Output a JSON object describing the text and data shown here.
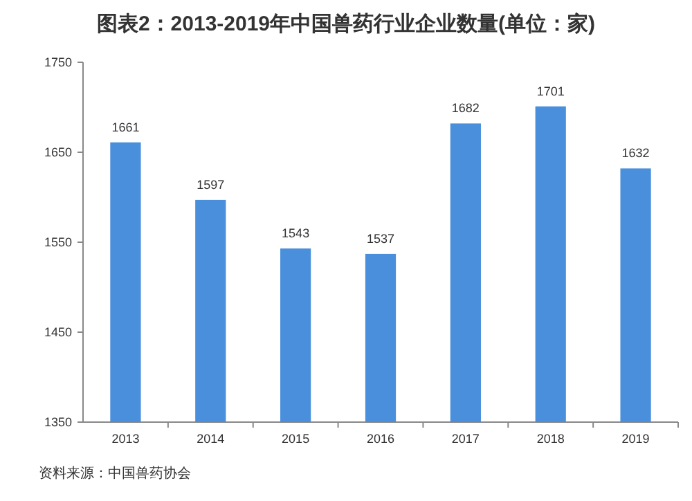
{
  "chart_data": {
    "type": "bar",
    "title": "图表2：2013-2019年中国兽药行业企业数量(单位：家)",
    "categories": [
      "2013",
      "2014",
      "2015",
      "2016",
      "2017",
      "2018",
      "2019"
    ],
    "values": [
      1661,
      1597,
      1543,
      1537,
      1682,
      1701,
      1632
    ],
    "color": "#4a8fdc",
    "ylim": [
      1350,
      1750
    ],
    "yticks": [
      1350,
      1450,
      1550,
      1650,
      1750
    ],
    "data_labels": true,
    "grid": false,
    "annotations": [
      "资料来源：中国兽药协会"
    ]
  }
}
